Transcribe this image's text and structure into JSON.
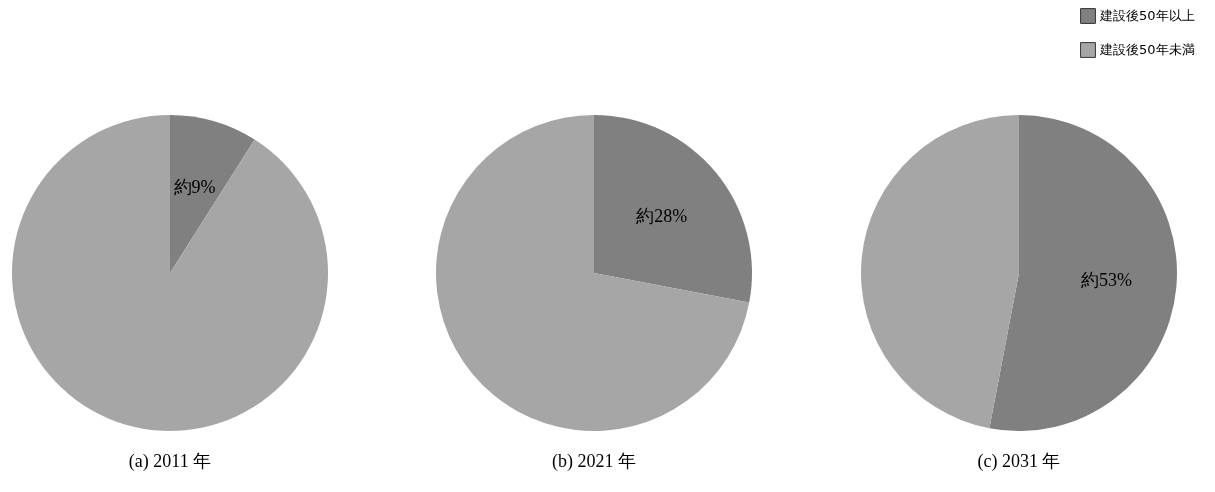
{
  "chart_data": [
    {
      "type": "pie",
      "title": "(a) 2011 年",
      "categories": [
        null,
        null
      ],
      "values": [
        9,
        91
      ],
      "colors": [
        "#808080",
        "#a6a6a6"
      ],
      "value_labels": [
        "約9%",
        null
      ]
    },
    {
      "type": "pie",
      "title": "(b) 2021 年",
      "categories": [
        null,
        null
      ],
      "values": [
        28,
        72
      ],
      "colors": [
        "#808080",
        "#a6a6a6"
      ],
      "value_labels": [
        "約28%",
        null
      ]
    },
    {
      "type": "pie",
      "title": "(c) 2031 年",
      "categories": [
        "建設後50年以上",
        "建設後50年未満"
      ],
      "values": [
        53,
        47
      ],
      "colors": [
        "#808080",
        "#a6a6a6"
      ],
      "value_labels": [
        "約53%",
        null
      ],
      "legend": "top right"
    }
  ]
}
